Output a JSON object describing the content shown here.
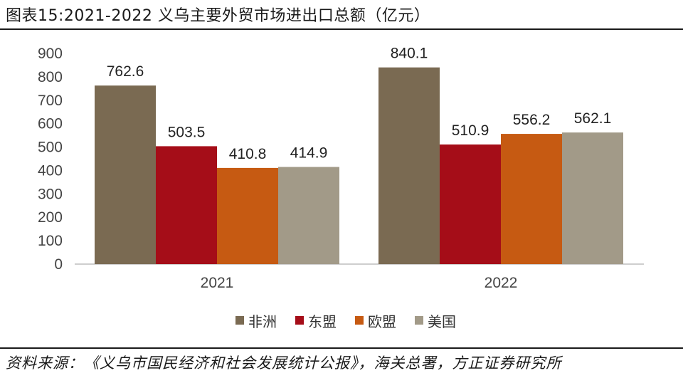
{
  "header": {
    "title": "图表15:2021-2022 义乌主要外贸市场进出口总额（亿元）"
  },
  "footer": {
    "source": "资料来源：《义乌市国民经济和社会发展统计公报》，海关总署，方正证券研究所"
  },
  "chart_data": {
    "type": "bar",
    "title": "",
    "xlabel": "",
    "ylabel": "",
    "categories": [
      "2021",
      "2022"
    ],
    "ylim": [
      0,
      900
    ],
    "yticks": [
      0,
      100,
      200,
      300,
      400,
      500,
      600,
      700,
      800,
      900
    ],
    "grid": false,
    "legend_position": "bottom",
    "series": [
      {
        "name": "非洲",
        "color": "#7a6a52",
        "values": [
          762.6,
          840.1
        ],
        "labels": [
          "762.6",
          "840.1"
        ]
      },
      {
        "name": "东盟",
        "color": "#a50d18",
        "values": [
          503.5,
          510.9
        ],
        "labels": [
          "503.5",
          "510.9"
        ]
      },
      {
        "name": "欧盟",
        "color": "#c65a12",
        "values": [
          410.8,
          556.2
        ],
        "labels": [
          "410.8",
          "556.2"
        ]
      },
      {
        "name": "美国",
        "color": "#a29a88",
        "values": [
          414.9,
          562.1
        ],
        "labels": [
          "414.9",
          "562.1"
        ]
      }
    ]
  }
}
